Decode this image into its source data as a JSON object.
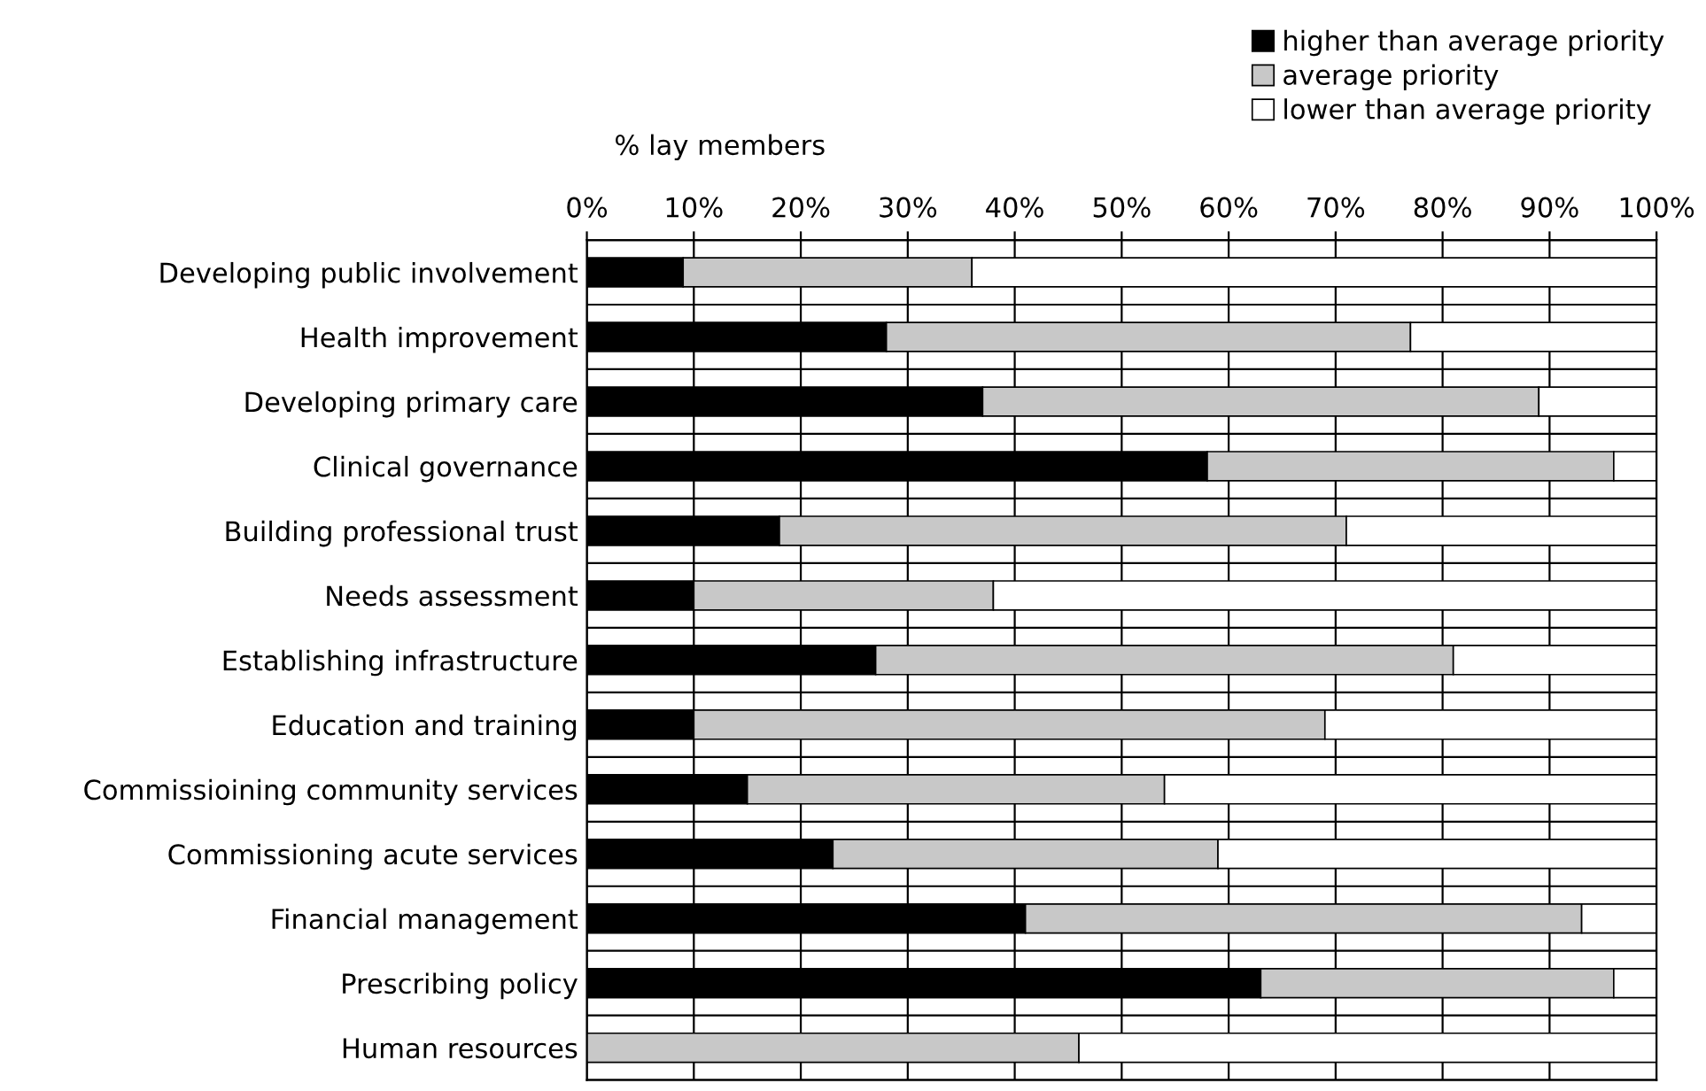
{
  "chart_data": {
    "type": "bar",
    "orientation": "horizontal",
    "stacked": true,
    "xlabel": "% lay members",
    "categories": [
      "Developing public involvement",
      "Health improvement",
      "Developing primary care",
      "Clinical governance",
      "Building professional trust",
      "Needs assessment",
      "Establishing infrastructure",
      "Education and training",
      "Commissioining community services",
      "Commissioning acute services",
      "Financial management",
      "Prescribing policy",
      "Human resources"
    ],
    "series": [
      {
        "name": "higher than average priority",
        "color": "#000000",
        "values": [
          9,
          28,
          37,
          58,
          18,
          10,
          27,
          10,
          15,
          23,
          41,
          63,
          0
        ]
      },
      {
        "name": "average priority",
        "color": "#c8c8c8",
        "values": [
          27,
          49,
          52,
          38,
          53,
          28,
          54,
          59,
          39,
          36,
          52,
          33,
          46
        ]
      },
      {
        "name": "lower than average priority",
        "color": "#ffffff",
        "values": [
          64,
          23,
          11,
          4,
          29,
          62,
          19,
          31,
          46,
          41,
          7,
          4,
          54
        ]
      }
    ],
    "xlim": [
      0,
      100
    ],
    "xticks": [
      {
        "value": 0,
        "label": "0%"
      },
      {
        "value": 10,
        "label": "10%"
      },
      {
        "value": 20,
        "label": "20%"
      },
      {
        "value": 30,
        "label": "30%"
      },
      {
        "value": 40,
        "label": "40%"
      },
      {
        "value": 50,
        "label": "50%"
      },
      {
        "value": 60,
        "label": "60%"
      },
      {
        "value": 70,
        "label": "70%"
      },
      {
        "value": 80,
        "label": "80%"
      },
      {
        "value": 90,
        "label": "90%"
      },
      {
        "value": 100,
        "label": "100%"
      }
    ],
    "grid": true,
    "legend": "top right"
  }
}
